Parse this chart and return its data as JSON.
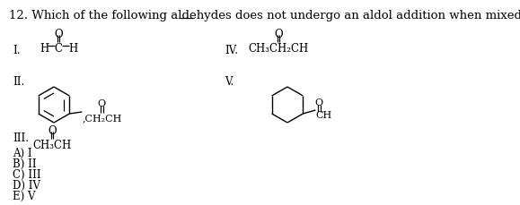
{
  "title_pre": "12. Which of the following aldehydes does ",
  "title_mid": "not",
  "title_post": " undergo an aldol addition when mixed with base?",
  "answer_choices": [
    "A) I",
    "B) II",
    "C) III",
    "D) IV",
    "E) V"
  ],
  "background_color": "#ffffff",
  "text_color": "#000000",
  "font_size_title": 9.5,
  "font_size_label": 8.5,
  "font_size_struct": 8.0
}
